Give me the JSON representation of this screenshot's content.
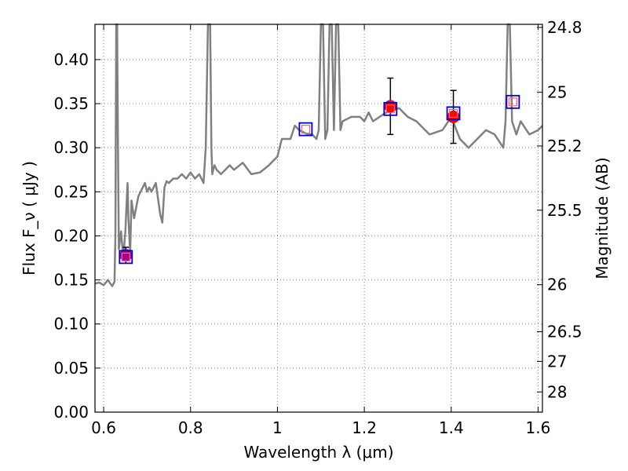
{
  "chart_data": {
    "type": "line",
    "xlabel": "Wavelength  λ (μm)",
    "ylabel_left": "Flux  F_ν  ( μJy )",
    "ylabel_right": "Magnitude (AB)",
    "xlim": [
      0.58,
      1.61
    ],
    "ylim": [
      0,
      0.44
    ],
    "grid": true,
    "x_ticks": [
      {
        "value": 0.6,
        "label": "0.6"
      },
      {
        "value": 0.8,
        "label": "0.8"
      },
      {
        "value": 1.0,
        "label": "1"
      },
      {
        "value": 1.2,
        "label": "1.2"
      },
      {
        "value": 1.4,
        "label": "1.4"
      },
      {
        "value": 1.6,
        "label": "1.6"
      }
    ],
    "y_ticks": [
      {
        "value": 0.0,
        "label": "0.00"
      },
      {
        "value": 0.05,
        "label": "0.05"
      },
      {
        "value": 0.1,
        "label": "0.10"
      },
      {
        "value": 0.15,
        "label": "0.15"
      },
      {
        "value": 0.2,
        "label": "0.20"
      },
      {
        "value": 0.25,
        "label": "0.25"
      },
      {
        "value": 0.3,
        "label": "0.30"
      },
      {
        "value": 0.35,
        "label": "0.35"
      },
      {
        "value": 0.4,
        "label": "0.40"
      }
    ],
    "mag_ticks": [
      {
        "value": 24.8,
        "label": "24.8"
      },
      {
        "value": 25.0,
        "label": "25"
      },
      {
        "value": 25.2,
        "label": "25.2"
      },
      {
        "value": 25.5,
        "label": "25.5"
      },
      {
        "value": 26.0,
        "label": "26"
      },
      {
        "value": 26.5,
        "label": "26.5"
      },
      {
        "value": 27.0,
        "label": "27"
      },
      {
        "value": 28.0,
        "label": "28"
      }
    ],
    "colors": {
      "spectrum": "#808080",
      "observed": "#ff0000",
      "observed_alt": "#a000a0",
      "model_box": "#0000cc",
      "model_inner": "#ff6666",
      "grid": "#888888"
    },
    "spectrum": {
      "x": [
        0.58,
        0.59,
        0.6,
        0.61,
        0.615,
        0.62,
        0.625,
        0.627,
        0.629,
        0.631,
        0.633,
        0.635,
        0.64,
        0.645,
        0.65,
        0.655,
        0.657,
        0.659,
        0.661,
        0.664,
        0.67,
        0.68,
        0.69,
        0.695,
        0.7,
        0.705,
        0.71,
        0.72,
        0.73,
        0.735,
        0.74,
        0.745,
        0.75,
        0.76,
        0.77,
        0.78,
        0.79,
        0.8,
        0.81,
        0.82,
        0.83,
        0.835,
        0.84,
        0.845,
        0.848,
        0.85,
        0.852,
        0.855,
        0.86,
        0.87,
        0.88,
        0.89,
        0.9,
        0.92,
        0.94,
        0.96,
        0.98,
        0.99,
        1.0,
        1.01,
        1.02,
        1.03,
        1.04,
        1.05,
        1.07,
        1.08,
        1.09,
        1.095,
        1.1,
        1.105,
        1.11,
        1.115,
        1.12,
        1.125,
        1.13,
        1.135,
        1.14,
        1.145,
        1.15,
        1.17,
        1.19,
        1.2,
        1.21,
        1.22,
        1.25,
        1.28,
        1.3,
        1.32,
        1.35,
        1.38,
        1.4,
        1.42,
        1.44,
        1.46,
        1.48,
        1.5,
        1.52,
        1.525,
        1.53,
        1.535,
        1.54,
        1.55,
        1.56,
        1.58,
        1.6,
        1.61
      ],
      "y": [
        0.146,
        0.147,
        0.144,
        0.15,
        0.146,
        0.143,
        0.148,
        0.2,
        0.44,
        0.44,
        0.3,
        0.185,
        0.205,
        0.175,
        0.205,
        0.26,
        0.22,
        0.2,
        0.18,
        0.24,
        0.22,
        0.245,
        0.255,
        0.26,
        0.25,
        0.255,
        0.25,
        0.26,
        0.225,
        0.215,
        0.255,
        0.262,
        0.26,
        0.265,
        0.265,
        0.27,
        0.265,
        0.272,
        0.265,
        0.27,
        0.26,
        0.3,
        0.44,
        0.44,
        0.3,
        0.27,
        0.275,
        0.28,
        0.275,
        0.27,
        0.275,
        0.28,
        0.275,
        0.283,
        0.27,
        0.272,
        0.28,
        0.285,
        0.29,
        0.31,
        0.31,
        0.31,
        0.325,
        0.32,
        0.315,
        0.315,
        0.31,
        0.32,
        0.44,
        0.44,
        0.31,
        0.32,
        0.44,
        0.44,
        0.32,
        0.44,
        0.44,
        0.32,
        0.33,
        0.335,
        0.335,
        0.33,
        0.34,
        0.33,
        0.34,
        0.345,
        0.335,
        0.33,
        0.315,
        0.32,
        0.335,
        0.31,
        0.3,
        0.31,
        0.32,
        0.315,
        0.3,
        0.33,
        0.44,
        0.44,
        0.33,
        0.315,
        0.33,
        0.315,
        0.32,
        0.325
      ]
    },
    "observed_points": [
      {
        "x": 0.651,
        "y": 0.178,
        "yerr": 0.009,
        "color_key": "observed_alt"
      },
      {
        "x": 1.26,
        "y": 0.347,
        "yerr": 0.032,
        "color_key": "observed"
      },
      {
        "x": 1.405,
        "y": 0.335,
        "yerr": 0.03,
        "color_key": "observed"
      }
    ],
    "model_points": [
      {
        "x": 0.651,
        "y": 0.176
      },
      {
        "x": 1.065,
        "y": 0.321
      },
      {
        "x": 1.26,
        "y": 0.344
      },
      {
        "x": 1.405,
        "y": 0.339
      },
      {
        "x": 1.542,
        "y": 0.352
      }
    ]
  }
}
